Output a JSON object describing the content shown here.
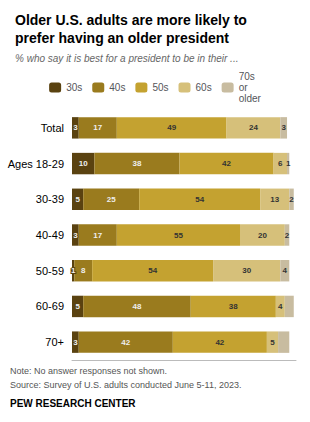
{
  "chart_data": {
    "type": "bar",
    "orientation": "horizontal",
    "stacked": true,
    "title": "Older U.S. adults are more likely to\nprefer having an older president",
    "subtitle": "% who say it is best for a president to be in their ...",
    "categories": [
      "Total",
      "Ages 18-29",
      "30-39",
      "40-49",
      "50-59",
      "60-69",
      "70+"
    ],
    "series": [
      {
        "name": "30s",
        "color": "#5a4210",
        "values": [
          3,
          10,
          5,
          3,
          1,
          5,
          3
        ]
      },
      {
        "name": "40s",
        "color": "#9a7b1e",
        "values": [
          17,
          38,
          25,
          17,
          8,
          48,
          42
        ]
      },
      {
        "name": "50s",
        "color": "#c4a230",
        "values": [
          49,
          42,
          54,
          55,
          54,
          38,
          42
        ]
      },
      {
        "name": "60s",
        "color": "#d6c07a",
        "values": [
          24,
          6,
          13,
          20,
          30,
          4,
          5
        ]
      },
      {
        "name": "70s\nor\nolder",
        "color": "#c8bca0",
        "values": [
          3,
          1,
          2,
          2,
          4,
          4,
          5
        ],
        "value_labels": [
          "3",
          "1",
          "2",
          "2",
          "4",
          null,
          null
        ]
      }
    ],
    "xlim": [
      0,
      100
    ],
    "data_labels": true,
    "tick_labels": "y",
    "grid": false,
    "legend": "top",
    "annotations": [
      "Note: No answer responses not shown.",
      "Source: Survey of U.S. adults conducted June 5-11, 2023.",
      "PEW RESEARCH CENTER"
    ]
  }
}
